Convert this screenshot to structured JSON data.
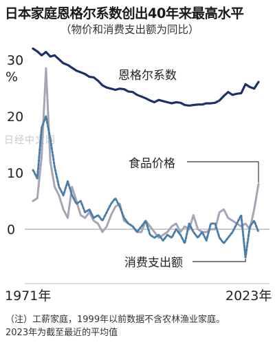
{
  "title": "日本家庭恩格尔系数创出40年来最高水平",
  "subtitle": "（物价和消费支出额为同比）",
  "watermark": "日经中文网",
  "notes": [
    "（注）工薪家庭，1999年以前数据不含农林渔业家庭。",
    "2023年为截至最近的平均值"
  ],
  "colors": {
    "engel": "#1b2f6b",
    "food": "#a5a5b5",
    "spending": "#4a7ea8"
  },
  "chart_data": {
    "type": "line",
    "x_start": 1971,
    "x_end": 2023,
    "x_tick_labels": [
      "1971年",
      "2023年"
    ],
    "y_ticks": [
      {
        "value": 0,
        "label": "0"
      },
      {
        "value": 10,
        "label": "10"
      },
      {
        "value": 20,
        "label": "20"
      },
      {
        "value": 30,
        "label": "30"
      }
    ],
    "y_unit": "%",
    "ylim": [
      -10,
      34
    ],
    "series": [
      {
        "name": "恩格尔系数",
        "style": "solid-thick",
        "points": [
          [
            1971,
            32.0
          ],
          [
            1972,
            31.5
          ],
          [
            1973,
            30.8
          ],
          [
            1974,
            31.4
          ],
          [
            1975,
            30.6
          ],
          [
            1976,
            30.8
          ],
          [
            1977,
            30.1
          ],
          [
            1978,
            29.4
          ],
          [
            1979,
            29.1
          ],
          [
            1980,
            28.6
          ],
          [
            1981,
            28.1
          ],
          [
            1982,
            27.8
          ],
          [
            1983,
            27.5
          ],
          [
            1984,
            27.0
          ],
          [
            1985,
            26.9
          ],
          [
            1986,
            26.3
          ],
          [
            1987,
            25.5
          ],
          [
            1988,
            25.1
          ],
          [
            1989,
            24.9
          ],
          [
            1990,
            24.7
          ],
          [
            1991,
            24.9
          ],
          [
            1992,
            24.8
          ],
          [
            1993,
            24.4
          ],
          [
            1994,
            24.3
          ],
          [
            1995,
            23.8
          ],
          [
            1996,
            23.5
          ],
          [
            1997,
            23.2
          ],
          [
            1998,
            22.8
          ],
          [
            1999,
            22.5
          ],
          [
            2000,
            22.9
          ],
          [
            2001,
            22.7
          ],
          [
            2002,
            22.5
          ],
          [
            2003,
            22.3
          ],
          [
            2004,
            22.5
          ],
          [
            2005,
            22.4
          ],
          [
            2006,
            22.0
          ],
          [
            2007,
            21.9
          ],
          [
            2008,
            22.0
          ],
          [
            2009,
            22.1
          ],
          [
            2010,
            22.1
          ],
          [
            2011,
            22.3
          ],
          [
            2012,
            22.3
          ],
          [
            2013,
            22.4
          ],
          [
            2014,
            22.8
          ],
          [
            2015,
            23.6
          ],
          [
            2016,
            24.3
          ],
          [
            2017,
            23.8
          ],
          [
            2018,
            24.0
          ],
          [
            2019,
            24.1
          ],
          [
            2020,
            25.7
          ],
          [
            2021,
            25.2
          ],
          [
            2022,
            24.9
          ],
          [
            2023,
            26.1
          ]
        ]
      },
      {
        "name": "食品价格",
        "style": "solid-light",
        "points": [
          [
            1971,
            5.0
          ],
          [
            1972,
            5.5
          ],
          [
            1973,
            13.0
          ],
          [
            1974,
            28.5
          ],
          [
            1975,
            12.0
          ],
          [
            1976,
            7.5
          ],
          [
            1977,
            6.0
          ],
          [
            1978,
            3.5
          ],
          [
            1979,
            2.0
          ],
          [
            1980,
            7.5
          ],
          [
            1981,
            5.0
          ],
          [
            1982,
            2.5
          ],
          [
            1983,
            2.0
          ],
          [
            1984,
            3.0
          ],
          [
            1985,
            1.5
          ],
          [
            1986,
            1.0
          ],
          [
            1987,
            -0.5
          ],
          [
            1988,
            0.5
          ],
          [
            1989,
            2.5
          ],
          [
            1990,
            4.0
          ],
          [
            1991,
            4.5
          ],
          [
            1992,
            1.5
          ],
          [
            1993,
            1.0
          ],
          [
            1994,
            0.5
          ],
          [
            1995,
            -0.5
          ],
          [
            1996,
            -0.5
          ],
          [
            1997,
            1.5
          ],
          [
            1998,
            0.5
          ],
          [
            1999,
            -0.5
          ],
          [
            2000,
            -1.5
          ],
          [
            2001,
            -1.0
          ],
          [
            2002,
            -0.5
          ],
          [
            2003,
            0.5
          ],
          [
            2004,
            1.0
          ],
          [
            2005,
            -0.5
          ],
          [
            2006,
            0.5
          ],
          [
            2007,
            0.0
          ],
          [
            2008,
            2.5
          ],
          [
            2009,
            0.0
          ],
          [
            2010,
            -0.5
          ],
          [
            2011,
            -0.5
          ],
          [
            2012,
            0.0
          ],
          [
            2013,
            0.0
          ],
          [
            2014,
            3.0
          ],
          [
            2015,
            3.5
          ],
          [
            2016,
            2.0
          ],
          [
            2017,
            1.5
          ],
          [
            2018,
            1.0
          ],
          [
            2019,
            0.5
          ],
          [
            2020,
            1.0
          ],
          [
            2021,
            0.0
          ],
          [
            2022,
            3.5
          ],
          [
            2023,
            8.0
          ]
        ]
      },
      {
        "name": "消费支出额",
        "style": "dotted",
        "points": [
          [
            1971,
            10.5
          ],
          [
            1972,
            9.0
          ],
          [
            1973,
            18.0
          ],
          [
            1974,
            20.0
          ],
          [
            1975,
            16.0
          ],
          [
            1976,
            11.0
          ],
          [
            1977,
            7.5
          ],
          [
            1978,
            6.0
          ],
          [
            1979,
            8.5
          ],
          [
            1980,
            6.0
          ],
          [
            1981,
            4.5
          ],
          [
            1982,
            5.0
          ],
          [
            1983,
            3.0
          ],
          [
            1984,
            3.5
          ],
          [
            1985,
            2.0
          ],
          [
            1986,
            2.5
          ],
          [
            1987,
            1.5
          ],
          [
            1988,
            3.0
          ],
          [
            1989,
            4.5
          ],
          [
            1990,
            5.5
          ],
          [
            1991,
            4.0
          ],
          [
            1992,
            2.0
          ],
          [
            1993,
            1.0
          ],
          [
            1994,
            0.5
          ],
          [
            1995,
            -0.5
          ],
          [
            1996,
            0.5
          ],
          [
            1997,
            1.5
          ],
          [
            1998,
            -1.0
          ],
          [
            1999,
            -1.5
          ],
          [
            2000,
            -1.0
          ],
          [
            2001,
            -2.0
          ],
          [
            2002,
            -1.0
          ],
          [
            2003,
            -1.5
          ],
          [
            2004,
            0.0
          ],
          [
            2005,
            -1.0
          ],
          [
            2006,
            -2.5
          ],
          [
            2007,
            1.0
          ],
          [
            2008,
            -0.5
          ],
          [
            2009,
            -1.5
          ],
          [
            2010,
            -0.5
          ],
          [
            2011,
            -2.0
          ],
          [
            2012,
            1.0
          ],
          [
            2013,
            1.0
          ],
          [
            2014,
            -1.5
          ],
          [
            2015,
            -2.5
          ],
          [
            2016,
            -1.5
          ],
          [
            2017,
            -0.5
          ],
          [
            2018,
            1.0
          ],
          [
            2019,
            2.5
          ],
          [
            2020,
            -5.0
          ],
          [
            2021,
            0.5
          ],
          [
            2022,
            1.5
          ],
          [
            2023,
            -0.5
          ]
        ]
      }
    ]
  }
}
